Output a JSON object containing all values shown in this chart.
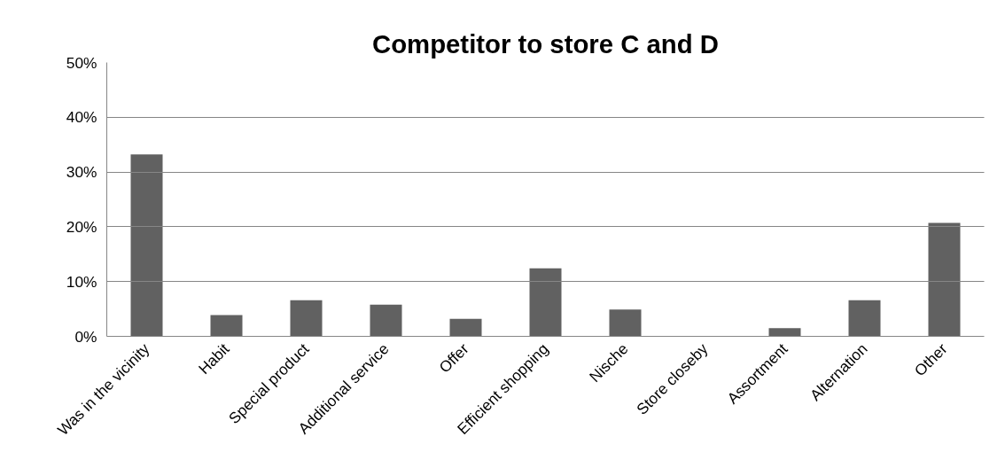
{
  "chart_data": {
    "type": "bar",
    "title": "Competitor to store C and D",
    "categories": [
      "Was in the vicinity",
      "Habit",
      "Special product",
      "Additional service",
      "Offer",
      "Efficient shopping",
      "Nische",
      "Store closeby",
      "Assortment",
      "Alternation",
      "Other"
    ],
    "values": [
      33.2,
      3.9,
      6.6,
      5.8,
      3.2,
      12.4,
      4.9,
      0,
      1.5,
      6.6,
      20.7
    ],
    "color": "#616161",
    "ylim": [
      0,
      50
    ],
    "yticks": [
      {
        "value": 0,
        "label": "0%"
      },
      {
        "value": 10,
        "label": "10%"
      },
      {
        "value": 20,
        "label": "20%"
      },
      {
        "value": 30,
        "label": "30%"
      },
      {
        "value": 40,
        "label": "40%"
      },
      {
        "value": 50,
        "label": "50%"
      }
    ],
    "grid": "y"
  }
}
